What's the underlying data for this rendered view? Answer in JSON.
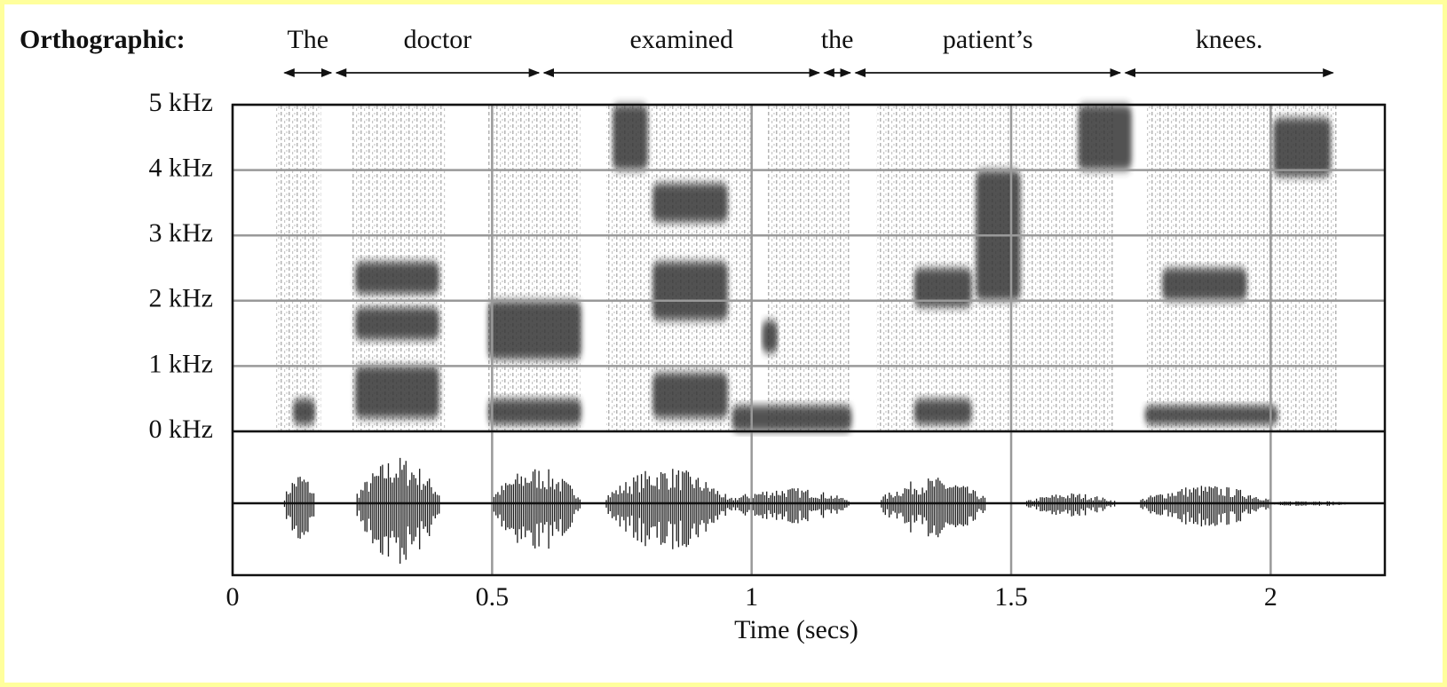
{
  "chart_data": {
    "type": "spectrogram",
    "row_label": "Orthographic:",
    "x_label": "Time (secs)",
    "xlim": [
      0,
      2.22
    ],
    "xticks": [
      0,
      0.5,
      1,
      1.5,
      2
    ],
    "ylim": [
      0,
      5
    ],
    "yticks": [
      {
        "value": 0,
        "label": "0 kHz"
      },
      {
        "value": 1,
        "label": "1 kHz"
      },
      {
        "value": 2,
        "label": "2 kHz"
      },
      {
        "value": 3,
        "label": "3 kHz"
      },
      {
        "value": 4,
        "label": "4 kHz"
      },
      {
        "value": 5,
        "label": "5 kHz"
      }
    ],
    "grid": true,
    "words": [
      {
        "text": "The",
        "start": 0.1,
        "end": 0.19
      },
      {
        "text": "doctor",
        "start": 0.2,
        "end": 0.59
      },
      {
        "text": "examined",
        "start": 0.6,
        "end": 1.13
      },
      {
        "text": "the",
        "start": 1.14,
        "end": 1.19
      },
      {
        "text": "patient’s",
        "start": 1.2,
        "end": 1.71
      },
      {
        "text": "knees.",
        "start": 1.72,
        "end": 2.12
      }
    ],
    "light_regions": [
      {
        "t": [
          0.08,
          0.17
        ],
        "f": [
          0,
          5
        ]
      },
      {
        "t": [
          0.23,
          0.41
        ],
        "f": [
          0,
          5
        ]
      },
      {
        "t": [
          0.49,
          0.67
        ],
        "f": [
          0,
          5
        ]
      },
      {
        "t": [
          0.72,
          1.0
        ],
        "f": [
          0,
          5
        ]
      },
      {
        "t": [
          1.03,
          1.19
        ],
        "f": [
          0,
          5
        ]
      },
      {
        "t": [
          1.24,
          1.7
        ],
        "f": [
          0,
          5
        ]
      },
      {
        "t": [
          1.76,
          2.13
        ],
        "f": [
          0,
          5
        ]
      }
    ],
    "dark_regions": [
      {
        "t": [
          0.116,
          0.159
        ],
        "f": [
          0.1,
          0.5
        ]
      },
      {
        "t": [
          0.236,
          0.398
        ],
        "f": [
          0.2,
          1.0
        ]
      },
      {
        "t": [
          0.236,
          0.398
        ],
        "f": [
          1.4,
          1.9
        ]
      },
      {
        "t": [
          0.236,
          0.398
        ],
        "f": [
          2.1,
          2.6
        ]
      },
      {
        "t": [
          0.492,
          0.672
        ],
        "f": [
          0.1,
          0.5
        ]
      },
      {
        "t": [
          0.492,
          0.672
        ],
        "f": [
          1.1,
          2.0
        ]
      },
      {
        "t": [
          0.732,
          0.8
        ],
        "f": [
          4.0,
          5.0
        ]
      },
      {
        "t": [
          0.809,
          0.954
        ],
        "f": [
          0.2,
          0.9
        ]
      },
      {
        "t": [
          0.809,
          0.954
        ],
        "f": [
          1.7,
          2.6
        ]
      },
      {
        "t": [
          0.809,
          0.954
        ],
        "f": [
          3.2,
          3.8
        ]
      },
      {
        "t": [
          0.962,
          1.193
        ],
        "f": [
          0.0,
          0.4
        ]
      },
      {
        "t": [
          1.02,
          1.05
        ],
        "f": [
          1.2,
          1.7
        ]
      },
      {
        "t": [
          1.313,
          1.424
        ],
        "f": [
          0.1,
          0.5
        ]
      },
      {
        "t": [
          1.313,
          1.424
        ],
        "f": [
          1.9,
          2.5
        ]
      },
      {
        "t": [
          1.432,
          1.518
        ],
        "f": [
          2.0,
          4.0
        ]
      },
      {
        "t": [
          1.629,
          1.732
        ],
        "f": [
          4.0,
          5.0
        ]
      },
      {
        "t": [
          1.757,
          2.014
        ],
        "f": [
          0.1,
          0.4
        ]
      },
      {
        "t": [
          1.791,
          1.954
        ],
        "f": [
          2.0,
          2.5
        ]
      },
      {
        "t": [
          2.005,
          2.116
        ],
        "f": [
          3.9,
          4.8
        ]
      }
    ],
    "waveform": [
      {
        "t": [
          0.1,
          0.16
        ],
        "amp": 0.6
      },
      {
        "t": [
          0.24,
          0.4
        ],
        "amp": 0.9
      },
      {
        "t": [
          0.5,
          0.67
        ],
        "amp": 0.7
      },
      {
        "t": [
          0.72,
          0.95
        ],
        "amp": 0.7
      },
      {
        "t": [
          0.95,
          1.19
        ],
        "amp": 0.3
      },
      {
        "t": [
          1.25,
          1.45
        ],
        "amp": 0.5
      },
      {
        "t": [
          1.53,
          1.7
        ],
        "amp": 0.2
      },
      {
        "t": [
          1.75,
          2.0
        ],
        "amp": 0.35
      },
      {
        "t": [
          2.0,
          2.15
        ],
        "amp": 0.05
      }
    ]
  }
}
